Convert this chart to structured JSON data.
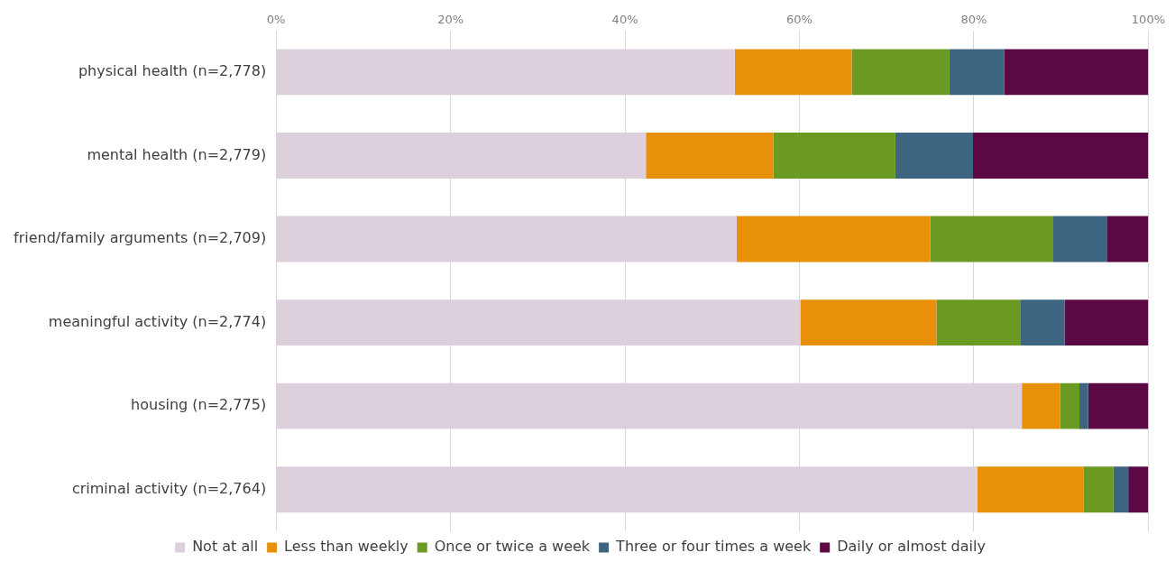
{
  "chart_data": {
    "type": "bar",
    "orientation": "horizontal",
    "stacked": true,
    "categories": [
      "physical health (n=2,778)",
      "mental health (n=2,779)",
      "friend/family arguments (n=2,709)",
      "meaningful activity (n=2,774)",
      "housing (n=2,775)",
      "criminal activity (n=2,764)"
    ],
    "series": [
      {
        "name": "Not at all",
        "color": "#dcd0dc",
        "values": [
          52.6,
          42.4,
          52.8,
          60.1,
          85.5,
          80.4
        ]
      },
      {
        "name": "Less than weekly",
        "color": "#e8900a",
        "values": [
          13.4,
          14.6,
          22.2,
          15.6,
          4.4,
          12.2
        ]
      },
      {
        "name": "Once or twice a week",
        "color": "#6b9a22",
        "values": [
          11.2,
          14.0,
          14.1,
          9.6,
          2.2,
          3.4
        ]
      },
      {
        "name": "Three or four times a week",
        "color": "#3d6480",
        "values": [
          6.3,
          8.9,
          6.2,
          5.1,
          1.0,
          1.7
        ]
      },
      {
        "name": "Daily or almost daily",
        "color": "#5c0845",
        "values": [
          16.5,
          20.1,
          4.7,
          9.6,
          6.9,
          2.3
        ]
      }
    ],
    "xlim": [
      0,
      100
    ],
    "xticks": [
      {
        "value": 0,
        "label": "0%"
      },
      {
        "value": 20,
        "label": "20%"
      },
      {
        "value": 40,
        "label": "40%"
      },
      {
        "value": 60,
        "label": "60%"
      },
      {
        "value": 80,
        "label": "80%"
      },
      {
        "value": 100,
        "label": "100%"
      }
    ],
    "grid": "x",
    "legend": "bottom"
  }
}
